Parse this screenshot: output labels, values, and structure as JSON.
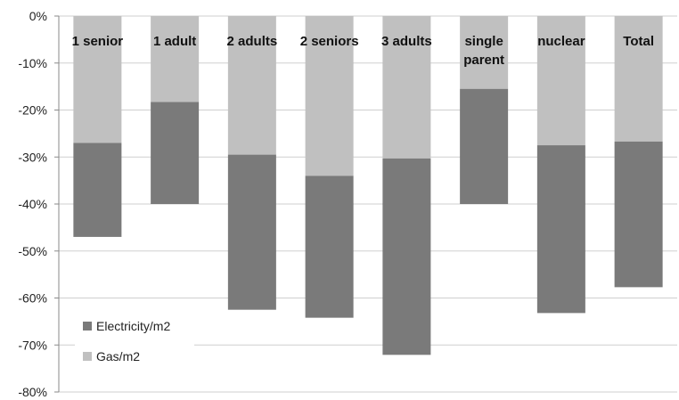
{
  "chart_data": {
    "type": "bar",
    "stacked": true,
    "categories": [
      [
        "1 senior"
      ],
      [
        "1 adult"
      ],
      [
        "2 adults"
      ],
      [
        "2 seniors"
      ],
      [
        "3 adults"
      ],
      [
        "single",
        "parent"
      ],
      [
        "nuclear"
      ],
      [
        "Total"
      ]
    ],
    "series": [
      {
        "name": "Gas/m2",
        "color": "#c0c0c0",
        "values": [
          -27,
          -18.3,
          -29.5,
          -34,
          -30.3,
          -15.5,
          -27.5,
          -26.7
        ]
      },
      {
        "name": "Electricity/m2",
        "color": "#7a7a7a",
        "values": [
          -20,
          -21.7,
          -33,
          -30.2,
          -41.8,
          -24.5,
          -35.7,
          -31
        ]
      }
    ],
    "yticks": [
      "0%",
      "-10%",
      "-20%",
      "-30%",
      "-40%",
      "-50%",
      "-60%",
      "-70%",
      "-80%"
    ],
    "ylim": [
      -80,
      0
    ],
    "grid": true,
    "legend_position": "bottom-left"
  }
}
